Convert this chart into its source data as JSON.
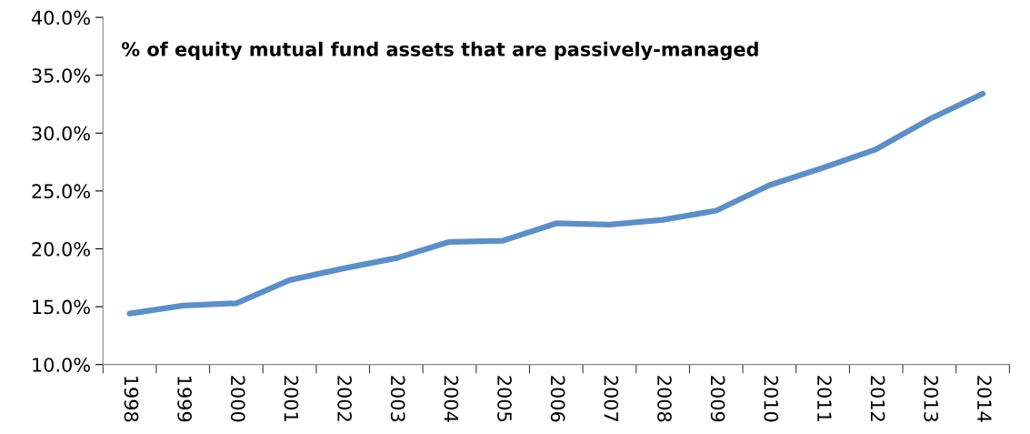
{
  "chart_data": {
    "type": "line",
    "title": "% of equity mutual fund assets that are passively-managed",
    "categories": [
      "1998",
      "1999",
      "2000",
      "2001",
      "2002",
      "2003",
      "2004",
      "2005",
      "2006",
      "2007",
      "2008",
      "2009",
      "2010",
      "2011",
      "2012",
      "2013",
      "2014"
    ],
    "series": [
      {
        "color": "#5b8fc9",
        "values": [
          14.4,
          15.1,
          15.3,
          17.3,
          18.3,
          19.2,
          20.6,
          20.7,
          22.2,
          22.1,
          22.5,
          23.3,
          25.5,
          27.0,
          28.6,
          31.2,
          33.4
        ]
      }
    ],
    "ylim": [
      10,
      40
    ],
    "yticks": [
      {
        "value": 10,
        "label": "10.0%"
      },
      {
        "value": 15,
        "label": "15.0%"
      },
      {
        "value": 20,
        "label": "20.0%"
      },
      {
        "value": 25,
        "label": "25.0%"
      },
      {
        "value": 30,
        "label": "30.0%"
      },
      {
        "value": 35,
        "label": "35.0%"
      },
      {
        "value": 40,
        "label": "40.0%"
      }
    ],
    "grid": false,
    "legend": false,
    "marker": "none",
    "line_style": "solid"
  }
}
